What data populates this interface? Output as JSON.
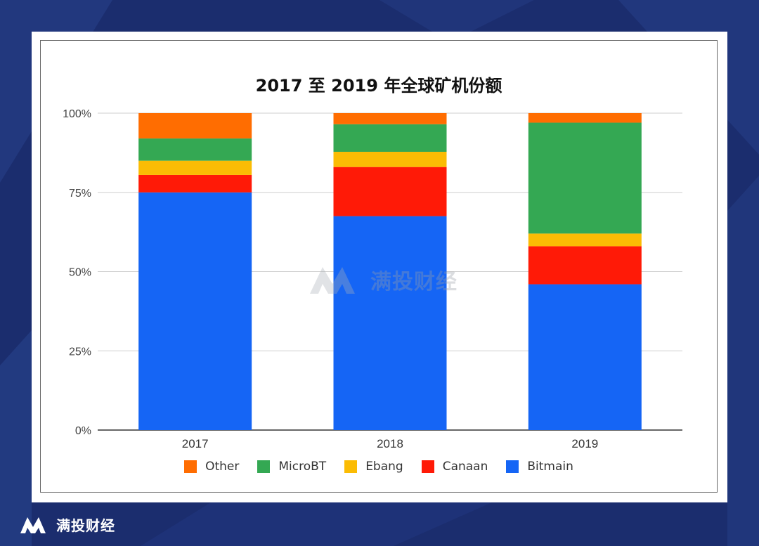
{
  "brand": {
    "name": "满投财经",
    "logo_icon": "ma-logo-icon"
  },
  "watermark": {
    "text": "满投财经"
  },
  "colors": {
    "background": "#1b2d6e",
    "Bitmain": "#1565f5",
    "Canaan": "#ff1a07",
    "Ebang": "#fbbc04",
    "MicroBT": "#34a853",
    "Other": "#ff6d01"
  },
  "chart_data": {
    "type": "bar",
    "stacked": true,
    "title": "2017 至 2019 年全球矿机份额",
    "xlabel": "",
    "ylabel": "",
    "ylim": [
      0,
      100
    ],
    "yticks": [
      "0%",
      "25%",
      "50%",
      "75%",
      "100%"
    ],
    "categories": [
      "2017",
      "2018",
      "2019"
    ],
    "grid": true,
    "legend_position": "bottom",
    "legend": [
      "Other",
      "MicroBT",
      "Ebang",
      "Canaan",
      "Bitmain"
    ],
    "series": [
      {
        "name": "Bitmain",
        "values": [
          75,
          67.5,
          46
        ]
      },
      {
        "name": "Canaan",
        "values": [
          5.5,
          15.5,
          12
        ]
      },
      {
        "name": "Ebang",
        "values": [
          4.5,
          4.8,
          4
        ]
      },
      {
        "name": "MicroBT",
        "values": [
          7,
          8.7,
          35
        ]
      },
      {
        "name": "Other",
        "values": [
          8,
          3.5,
          3
        ]
      }
    ]
  }
}
